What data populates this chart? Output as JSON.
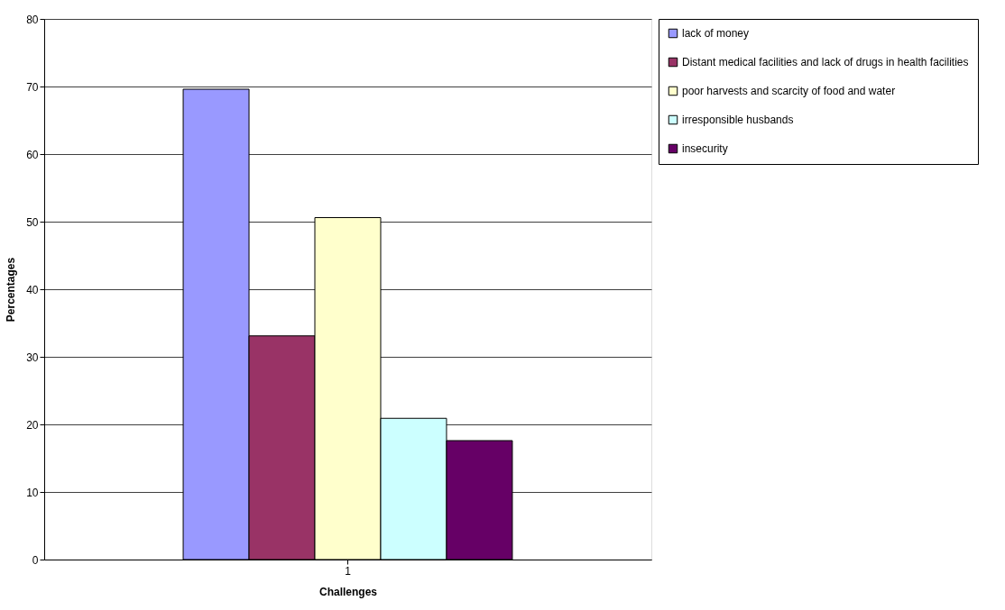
{
  "chart_data": {
    "type": "bar",
    "xlabel": "Challenges",
    "ylabel": "Percentages",
    "categories": [
      "1"
    ],
    "series": [
      {
        "name": "lack of money",
        "color": "#9999ff",
        "values": [
          69.6
        ]
      },
      {
        "name": "Distant medical facilities and lack of drugs in health facilities",
        "color": "#993366",
        "values": [
          33.1
        ]
      },
      {
        "name": "poor harvests and scarcity of food and water",
        "color": "#ffffcc",
        "values": [
          50.6
        ]
      },
      {
        "name": "irresponsible husbands",
        "color": "#ccffff",
        "values": [
          20.9
        ]
      },
      {
        "name": "insecurity",
        "color": "#660066",
        "values": [
          17.6
        ]
      }
    ],
    "ylim": [
      0,
      80
    ],
    "yticks": [
      0,
      10,
      20,
      30,
      40,
      50,
      60,
      70,
      80
    ],
    "grid": "y",
    "legend": "right"
  }
}
